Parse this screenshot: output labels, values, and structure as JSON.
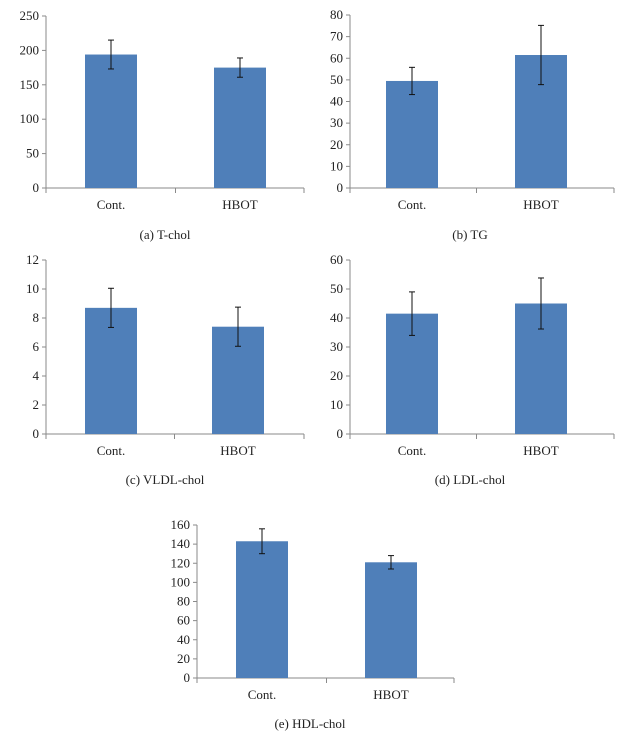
{
  "style": {
    "bar_color": "#4f7fb9",
    "axis_color": "#8a8a8a",
    "error_color": "#111111"
  },
  "chart_data": [
    {
      "type": "bar",
      "caption": "(a) T-chol",
      "categories": [
        "Cont.",
        "HBOT"
      ],
      "values": [
        194,
        175
      ],
      "errors": [
        21,
        14
      ],
      "ylim": [
        0,
        250
      ],
      "yticks": [
        0,
        50,
        100,
        150,
        200,
        250
      ]
    },
    {
      "type": "bar",
      "caption": "(b) TG",
      "categories": [
        "Cont.",
        "HBOT"
      ],
      "values": [
        49.5,
        61.5
      ],
      "errors": [
        6.3,
        13.7
      ],
      "ylim": [
        0,
        80
      ],
      "yticks": [
        0,
        10,
        20,
        30,
        40,
        50,
        60,
        70,
        80
      ]
    },
    {
      "type": "bar",
      "caption": "(c) VLDL-chol",
      "categories": [
        "Cont.",
        "HBOT"
      ],
      "values": [
        8.7,
        7.4
      ],
      "errors": [
        1.35,
        1.35
      ],
      "ylim": [
        0,
        12
      ],
      "yticks": [
        0,
        2,
        4,
        6,
        8,
        10,
        12
      ]
    },
    {
      "type": "bar",
      "caption": "(d) LDL-chol",
      "categories": [
        "Cont.",
        "HBOT"
      ],
      "values": [
        41.5,
        45
      ],
      "errors": [
        7.5,
        8.8
      ],
      "ylim": [
        0,
        60
      ],
      "yticks": [
        0,
        10,
        20,
        30,
        40,
        50,
        60
      ]
    },
    {
      "type": "bar",
      "caption": "(e) HDL-chol",
      "categories": [
        "Cont.",
        "HBOT"
      ],
      "values": [
        143,
        121
      ],
      "errors": [
        13,
        7
      ],
      "ylim": [
        0,
        160
      ],
      "yticks": [
        0,
        20,
        40,
        60,
        80,
        100,
        120,
        140,
        160
      ]
    }
  ]
}
